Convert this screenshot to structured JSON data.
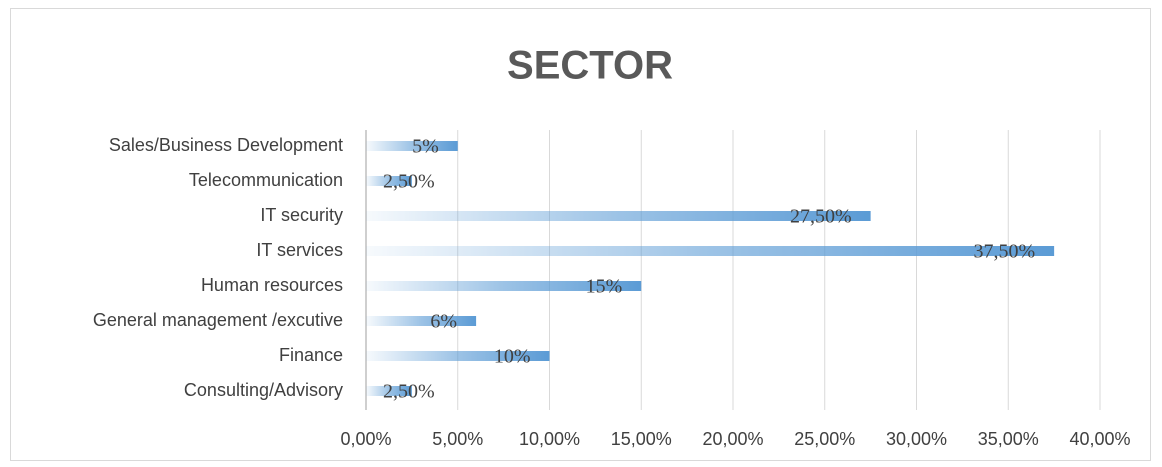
{
  "chart_data": {
    "type": "bar",
    "orientation": "horizontal",
    "title": "SECTOR",
    "categories": [
      "Sales/Business Development",
      "Telecommunication",
      "IT security",
      "IT services",
      "Human resources",
      "General management /excutive",
      "Finance",
      "Consulting/Advisory"
    ],
    "values": [
      5,
      2.5,
      27.5,
      37.5,
      15,
      6,
      10,
      2.5
    ],
    "value_labels": [
      "5%",
      "2,50%",
      "27,50%",
      "37,50%",
      "15%",
      "6%",
      "10%",
      "2,50%"
    ],
    "color": "#5b9bd5",
    "xlim": [
      0,
      40
    ],
    "xticks": [
      {
        "value": 0,
        "label": "0,00%"
      },
      {
        "value": 5,
        "label": "5,00%"
      },
      {
        "value": 10,
        "label": "10,00%"
      },
      {
        "value": 15,
        "label": "15,00%"
      },
      {
        "value": 20,
        "label": "20,00%"
      },
      {
        "value": 25,
        "label": "25,00%"
      },
      {
        "value": 30,
        "label": "30,00%"
      },
      {
        "value": 35,
        "label": "35,00%"
      },
      {
        "value": 40,
        "label": "40,00%"
      }
    ],
    "grid": true
  }
}
